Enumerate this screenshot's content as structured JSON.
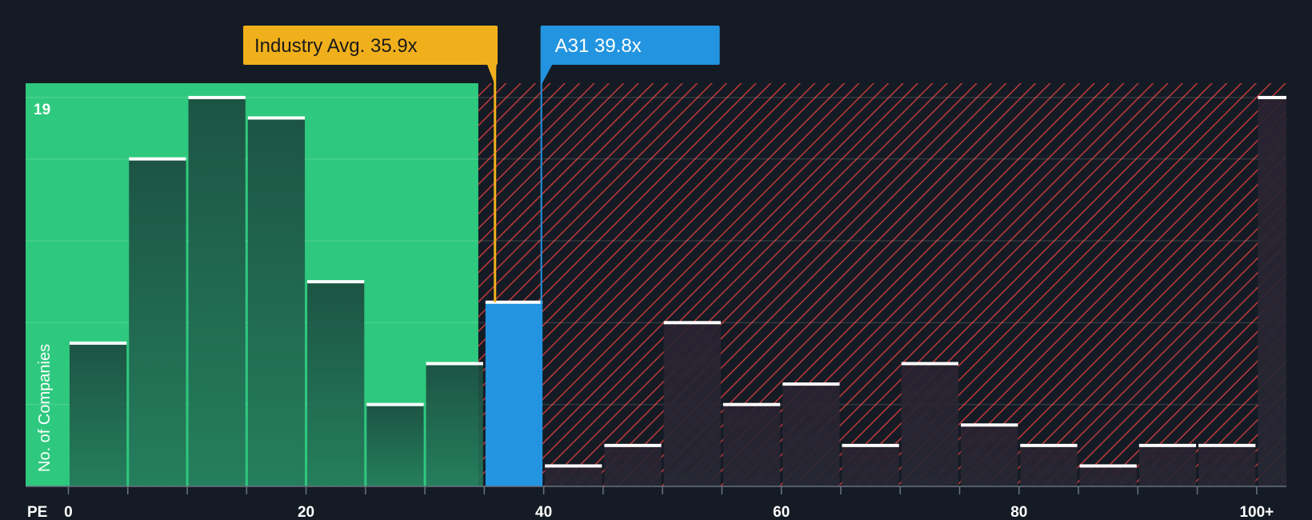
{
  "chart_data": {
    "type": "bar",
    "title": "",
    "xlabel": "PE",
    "ylabel": "No. of Companies",
    "x_tick_labels": [
      "0",
      "20",
      "40",
      "60",
      "80",
      "100+"
    ],
    "x_tick_values": [
      0,
      20,
      40,
      60,
      80,
      100
    ],
    "xlim": [
      -3.6,
      102.5
    ],
    "ylim": [
      0,
      19.7
    ],
    "y_max_label": "19",
    "bins": [
      {
        "start": 0,
        "end": 5,
        "value": 7
      },
      {
        "start": 5,
        "end": 10,
        "value": 16
      },
      {
        "start": 10,
        "end": 15,
        "value": 19
      },
      {
        "start": 15,
        "end": 20,
        "value": 18
      },
      {
        "start": 20,
        "end": 25,
        "value": 10
      },
      {
        "start": 25,
        "end": 30,
        "value": 4
      },
      {
        "start": 30,
        "end": 35,
        "value": 6
      },
      {
        "start": 35,
        "end": 40,
        "value": 9,
        "highlight": true
      },
      {
        "start": 40,
        "end": 45,
        "value": 1
      },
      {
        "start": 45,
        "end": 50,
        "value": 2
      },
      {
        "start": 50,
        "end": 55,
        "value": 8
      },
      {
        "start": 55,
        "end": 60,
        "value": 4
      },
      {
        "start": 60,
        "end": 65,
        "value": 5
      },
      {
        "start": 65,
        "end": 70,
        "value": 2
      },
      {
        "start": 70,
        "end": 75,
        "value": 6
      },
      {
        "start": 75,
        "end": 80,
        "value": 3
      },
      {
        "start": 80,
        "end": 85,
        "value": 2
      },
      {
        "start": 85,
        "end": 90,
        "value": 1
      },
      {
        "start": 90,
        "end": 95,
        "value": 2
      },
      {
        "start": 95,
        "end": 100,
        "value": 2
      },
      {
        "start": 100,
        "end": 102.5,
        "value": 19
      }
    ],
    "fair_zone_end": 34.5,
    "industry_avg": {
      "label": "Industry Avg. 35.9x",
      "value": 35.9
    },
    "company": {
      "label": "A31 39.8x",
      "value": 39.8
    }
  },
  "colors": {
    "background": "#151b24",
    "fair_zone": "#2ec97e",
    "fair_bar": "#1d4a40",
    "overvalued_bar": "#232634",
    "hatch": "#c0393b",
    "highlight": "#2394e0",
    "industry": "#f0b01c",
    "cap": "#ffffff"
  }
}
